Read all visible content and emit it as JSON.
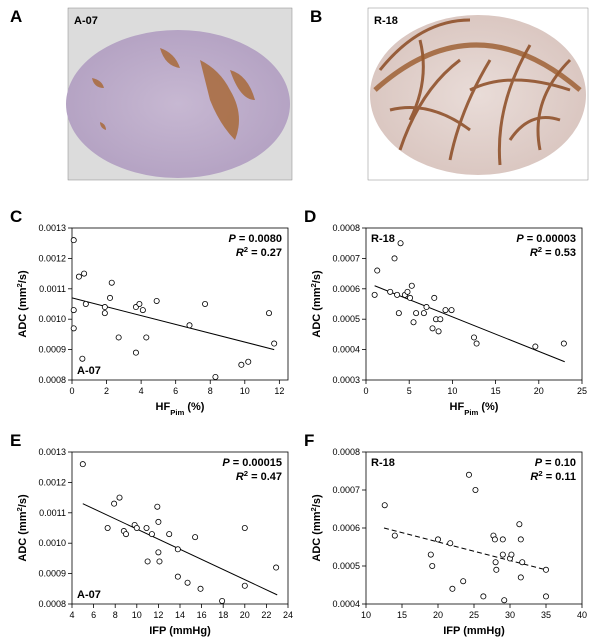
{
  "image_panels": [
    {
      "panel": "A",
      "label": "A-07"
    },
    {
      "panel": "B",
      "label": "R-18"
    }
  ],
  "chart_data": [
    {
      "type": "scatter",
      "panel": "C",
      "tumor": "A-07",
      "label_corner": "bottom-left",
      "p_text": [
        {
          "text": "P",
          "italic": true
        },
        {
          "text": " = 0.0080"
        }
      ],
      "r2_text": [
        {
          "text": "R",
          "italic": true
        },
        {
          "text": "2",
          "sup": true
        },
        {
          "text": " = 0.27"
        }
      ],
      "xlabel": [
        {
          "text": "HF"
        },
        {
          "text": "Pim",
          "sub": true
        },
        {
          "text": " (%)"
        }
      ],
      "ylabel": [
        {
          "text": "ADC (mm"
        },
        {
          "text": "2",
          "sup": true
        },
        {
          "text": "/s)"
        }
      ],
      "xlim": [
        0,
        12.5
      ],
      "xticks": [
        0,
        2,
        4,
        6,
        8,
        10,
        12
      ],
      "ylim": [
        0.0008,
        0.0013
      ],
      "yticks": [
        0.0008,
        0.0009,
        {
          "value": 0.001,
          "label": "0.0010"
        },
        0.0011,
        0.0012,
        0.0013
      ],
      "x": [
        0.1,
        0.1,
        0.1,
        0.4,
        0.7,
        0.6,
        0.8,
        1.9,
        1.9,
        2.2,
        2.3,
        2.7,
        3.7,
        3.7,
        3.9,
        4.1,
        4.3,
        4.9,
        6.8,
        7.7,
        8.3,
        9.8,
        10.2,
        11.4,
        11.7
      ],
      "values": [
        0.00126,
        0.00103,
        0.00097,
        0.00114,
        0.00115,
        0.00087,
        0.00105,
        0.00104,
        0.00102,
        0.00107,
        0.00112,
        0.00094,
        0.00089,
        0.00104,
        0.00105,
        0.00103,
        0.00094,
        0.00106,
        0.00098,
        0.00105,
        0.00081,
        0.00085,
        0.00086,
        0.00102,
        0.00092
      ],
      "fit": {
        "x": [
          0,
          11.7
        ],
        "y": [
          0.00107,
          0.0009
        ]
      },
      "fit_style": "solid"
    },
    {
      "type": "scatter",
      "panel": "D",
      "tumor": "R-18",
      "label_corner": "top-left",
      "p_text": [
        {
          "text": "P",
          "italic": true
        },
        {
          "text": " = 0.00003"
        }
      ],
      "r2_text": [
        {
          "text": "R",
          "italic": true
        },
        {
          "text": "2",
          "sup": true
        },
        {
          "text": " = 0.53"
        }
      ],
      "xlabel": [
        {
          "text": "HF"
        },
        {
          "text": "Pim",
          "sub": true
        },
        {
          "text": " (%)"
        }
      ],
      "ylabel": [
        {
          "text": "ADC (mm"
        },
        {
          "text": "2",
          "sup": true
        },
        {
          "text": "/s)"
        }
      ],
      "xlim": [
        0,
        25
      ],
      "xticks": [
        0,
        5,
        10,
        15,
        20,
        25
      ],
      "ylim": [
        0.0003,
        0.0008
      ],
      "yticks": [
        0.0003,
        0.0004,
        0.0005,
        0.0006,
        0.0007,
        0.0008
      ],
      "x": [
        1,
        1.3,
        2.8,
        3.3,
        3.6,
        3.8,
        4.0,
        4.5,
        4.8,
        5.1,
        5.3,
        5.5,
        5.8,
        6.7,
        7.0,
        7.7,
        7.9,
        8.1,
        8.4,
        8.6,
        9.2,
        9.9,
        12.5,
        12.8,
        19.6,
        22.9
      ],
      "values": [
        0.00058,
        0.00066,
        0.00059,
        0.0007,
        0.00058,
        0.00052,
        0.00075,
        0.00058,
        0.00059,
        0.00057,
        0.00061,
        0.00049,
        0.00052,
        0.00052,
        0.00054,
        0.00047,
        0.00057,
        0.0005,
        0.00046,
        0.0005,
        0.00053,
        0.00053,
        0.00044,
        0.00042,
        0.00041,
        0.00042
      ],
      "fit": {
        "x": [
          1,
          23
        ],
        "y": [
          0.00061,
          0.00036
        ]
      },
      "fit_style": "solid"
    },
    {
      "type": "scatter",
      "panel": "E",
      "tumor": "A-07",
      "label_corner": "bottom-left",
      "p_text": [
        {
          "text": "P",
          "italic": true
        },
        {
          "text": " = 0.00015"
        }
      ],
      "r2_text": [
        {
          "text": "R",
          "italic": true
        },
        {
          "text": "2",
          "sup": true
        },
        {
          "text": " = 0.47"
        }
      ],
      "xlabel": [
        {
          "text": "IFP (mmHg)"
        }
      ],
      "ylabel": [
        {
          "text": "ADC (mm"
        },
        {
          "text": "2",
          "sup": true
        },
        {
          "text": "/s)"
        }
      ],
      "xlim": [
        4,
        24
      ],
      "xticks": [
        4,
        6,
        8,
        10,
        12,
        14,
        16,
        18,
        20,
        22,
        24
      ],
      "ylim": [
        0.0008,
        0.0013
      ],
      "yticks": [
        0.0008,
        0.0009,
        {
          "value": 0.001,
          "label": "0.0010"
        },
        0.0011,
        0.0012,
        0.0013
      ],
      "x": [
        5,
        7.3,
        7.9,
        8.4,
        8.8,
        9.0,
        9.8,
        10.0,
        10.9,
        11.0,
        11.4,
        11.9,
        12.0,
        12.1,
        12.0,
        13.0,
        13.8,
        13.8,
        14.7,
        15.4,
        15.9,
        17.9,
        20.0,
        20.0,
        22.9
      ],
      "values": [
        0.00126,
        0.00105,
        0.00113,
        0.00115,
        0.00104,
        0.00103,
        0.00106,
        0.00105,
        0.00105,
        0.00094,
        0.00103,
        0.00112,
        0.00097,
        0.00094,
        0.00107,
        0.00103,
        0.00098,
        0.00089,
        0.00087,
        0.00102,
        0.00085,
        0.00081,
        0.00105,
        0.00086,
        0.00092
      ],
      "fit": {
        "x": [
          5,
          23
        ],
        "y": [
          0.00113,
          0.00083
        ]
      },
      "fit_style": "solid"
    },
    {
      "type": "scatter",
      "panel": "F",
      "tumor": "R-18",
      "label_corner": "top-left",
      "p_text": [
        {
          "text": "P",
          "italic": true
        },
        {
          "text": " = 0.10"
        }
      ],
      "r2_text": [
        {
          "text": "R",
          "italic": true
        },
        {
          "text": "2",
          "sup": true
        },
        {
          "text": " = 0.11"
        }
      ],
      "xlabel": [
        {
          "text": "IFP (mmHg)"
        }
      ],
      "ylabel": [
        {
          "text": "ADC (mm"
        },
        {
          "text": "2",
          "sup": true
        },
        {
          "text": "/s)"
        }
      ],
      "xlim": [
        10,
        40
      ],
      "xticks": [
        10,
        15,
        20,
        25,
        30,
        35,
        40
      ],
      "ylim": [
        0.0004,
        0.0008
      ],
      "yticks": [
        0.0004,
        0.0005,
        0.0006,
        0.0007,
        0.0008
      ],
      "x": [
        12.6,
        14.0,
        19.0,
        19.2,
        20.0,
        21.7,
        22.0,
        23.5,
        24.3,
        25.2,
        26.3,
        27.7,
        27.9,
        28.0,
        28.1,
        29.0,
        29.0,
        29.2,
        30.0,
        30.2,
        31.3,
        31.5,
        31.5,
        31.7,
        35.0,
        35.0
      ],
      "values": [
        0.00066,
        0.00058,
        0.00053,
        0.0005,
        0.00057,
        0.00056,
        0.00044,
        0.00046,
        0.00074,
        0.0007,
        0.00042,
        0.00058,
        0.00057,
        0.00051,
        0.00049,
        0.00057,
        0.00053,
        0.00041,
        0.00052,
        0.00053,
        0.00061,
        0.00057,
        0.00047,
        0.00051,
        0.00049,
        0.00042
      ],
      "fit": {
        "x": [
          12.5,
          35
        ],
        "y": [
          0.0006,
          0.00049
        ]
      },
      "fit_style": "dashed"
    }
  ]
}
